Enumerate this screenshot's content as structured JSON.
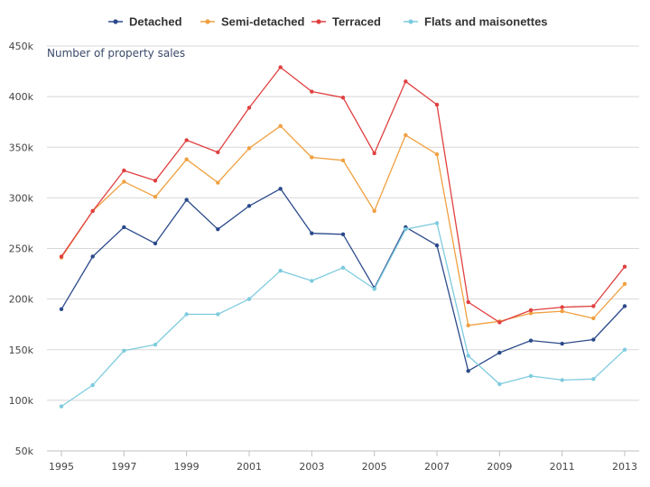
{
  "chart_data": {
    "type": "line",
    "title": "",
    "xlabel": "",
    "ylabel": "Number of property sales",
    "x": [
      1995,
      1996,
      1997,
      1998,
      1999,
      2000,
      2001,
      2002,
      2003,
      2004,
      2005,
      2006,
      2007,
      2008,
      2009,
      2010,
      2011,
      2012,
      2013
    ],
    "xticks": [
      1995,
      1997,
      1999,
      2001,
      2003,
      2005,
      2007,
      2009,
      2011,
      2013
    ],
    "xlim": [
      1995,
      2013
    ],
    "yticks": [
      50000,
      100000,
      150000,
      200000,
      250000,
      300000,
      350000,
      400000,
      450000
    ],
    "ytick_labels": [
      "50k",
      "100k",
      "150k",
      "200k",
      "250k",
      "300k",
      "350k",
      "400k",
      "450k"
    ],
    "ylim": [
      50000,
      450000
    ],
    "grid": true,
    "legend_position": "top",
    "series": [
      {
        "name": "Detached",
        "color": "#2b4a8b",
        "values": [
          190000,
          242000,
          271000,
          255000,
          298000,
          269000,
          292000,
          309000,
          265000,
          264000,
          211000,
          271000,
          253000,
          129000,
          147000,
          159000,
          156000,
          160000,
          193000
        ]
      },
      {
        "name": "Semi-detached",
        "color": "#f0a040",
        "values": [
          241000,
          287000,
          316000,
          301000,
          338000,
          315000,
          349000,
          371000,
          340000,
          337000,
          287000,
          362000,
          343000,
          174000,
          178000,
          186000,
          188000,
          181000,
          215000
        ]
      },
      {
        "name": "Terraced",
        "color": "#e04040",
        "values": [
          242000,
          287000,
          327000,
          317000,
          357000,
          345000,
          389000,
          429000,
          405000,
          399000,
          344000,
          415000,
          392000,
          197000,
          177000,
          189000,
          192000,
          193000,
          232000
        ]
      },
      {
        "name": "Flats and maisonettes",
        "color": "#7ecbde",
        "values": [
          94000,
          115000,
          149000,
          155000,
          185000,
          185000,
          200000,
          228000,
          218000,
          231000,
          210000,
          269000,
          275000,
          144000,
          116000,
          124000,
          120000,
          121000,
          150000
        ]
      }
    ]
  }
}
